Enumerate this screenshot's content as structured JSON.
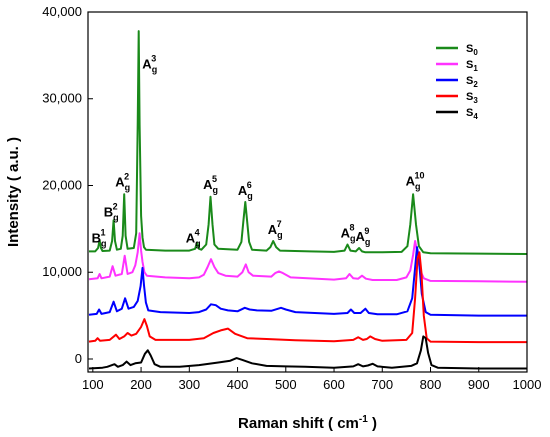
{
  "chart_data": {
    "type": "line",
    "xlabel": "Raman shift ( cm",
    "xlabel_sup": "-1",
    "xlabel_end": " )",
    "ylabel": "Intensity ( a.u. )",
    "xlim": [
      90,
      1000
    ],
    "ylim": [
      -1500,
      40000
    ],
    "x_ticks": [
      100,
      200,
      300,
      400,
      500,
      600,
      700,
      800,
      900,
      1000
    ],
    "y_ticks": [
      0,
      10000,
      20000,
      30000,
      40000
    ],
    "y_tick_labels": [
      "0",
      "10,000",
      "20,000",
      "30,000",
      "40,000"
    ],
    "legend_position": "top-right",
    "series": [
      {
        "name": "S",
        "sub": "0",
        "color": "#1a8a1a",
        "points": [
          [
            92,
            12400
          ],
          [
            105,
            12400
          ],
          [
            111,
            12800
          ],
          [
            114,
            13700
          ],
          [
            117,
            12800
          ],
          [
            120,
            12450
          ],
          [
            135,
            12500
          ],
          [
            140,
            13600
          ],
          [
            143,
            16000
          ],
          [
            146,
            13600
          ],
          [
            150,
            12600
          ],
          [
            158,
            12700
          ],
          [
            162,
            14200
          ],
          [
            165,
            19000
          ],
          [
            168,
            14200
          ],
          [
            172,
            12700
          ],
          [
            185,
            12800
          ],
          [
            190,
            14500
          ],
          [
            193,
            27000
          ],
          [
            195,
            37800
          ],
          [
            197,
            27000
          ],
          [
            200,
            16500
          ],
          [
            203,
            14000
          ],
          [
            206,
            12900
          ],
          [
            210,
            12600
          ],
          [
            250,
            12500
          ],
          [
            300,
            12500
          ],
          [
            312,
            12700
          ],
          [
            316,
            13400
          ],
          [
            320,
            12700
          ],
          [
            325,
            12600
          ],
          [
            335,
            13200
          ],
          [
            340,
            15500
          ],
          [
            344,
            18700
          ],
          [
            348,
            15500
          ],
          [
            352,
            13200
          ],
          [
            360,
            12700
          ],
          [
            400,
            12600
          ],
          [
            408,
            13500
          ],
          [
            412,
            15800
          ],
          [
            416,
            18100
          ],
          [
            420,
            15800
          ],
          [
            424,
            13500
          ],
          [
            430,
            12600
          ],
          [
            460,
            12500
          ],
          [
            468,
            12900
          ],
          [
            474,
            13600
          ],
          [
            480,
            12900
          ],
          [
            488,
            12500
          ],
          [
            550,
            12400
          ],
          [
            600,
            12350
          ],
          [
            622,
            12500
          ],
          [
            628,
            13200
          ],
          [
            634,
            12500
          ],
          [
            645,
            12400
          ],
          [
            652,
            12800
          ],
          [
            658,
            12400
          ],
          [
            665,
            12300
          ],
          [
            700,
            12300
          ],
          [
            740,
            12350
          ],
          [
            752,
            13000
          ],
          [
            758,
            15500
          ],
          [
            764,
            19000
          ],
          [
            770,
            15500
          ],
          [
            776,
            13000
          ],
          [
            785,
            12300
          ],
          [
            800,
            12200
          ],
          [
            900,
            12150
          ],
          [
            1000,
            12100
          ]
        ]
      },
      {
        "name": "S",
        "sub": "1",
        "color": "#ff33ff",
        "points": [
          [
            92,
            9200
          ],
          [
            110,
            9300
          ],
          [
            114,
            9800
          ],
          [
            118,
            9300
          ],
          [
            135,
            9500
          ],
          [
            141,
            10700
          ],
          [
            147,
            9600
          ],
          [
            160,
            9800
          ],
          [
            166,
            11900
          ],
          [
            172,
            9800
          ],
          [
            182,
            10000
          ],
          [
            188,
            10800
          ],
          [
            193,
            12300
          ],
          [
            197,
            14500
          ],
          [
            200,
            12500
          ],
          [
            203,
            11200
          ],
          [
            207,
            10000
          ],
          [
            212,
            9600
          ],
          [
            250,
            9400
          ],
          [
            300,
            9300
          ],
          [
            320,
            9400
          ],
          [
            330,
            9700
          ],
          [
            338,
            10600
          ],
          [
            345,
            11500
          ],
          [
            352,
            10600
          ],
          [
            360,
            9900
          ],
          [
            375,
            9600
          ],
          [
            400,
            9500
          ],
          [
            410,
            10000
          ],
          [
            417,
            10900
          ],
          [
            423,
            10000
          ],
          [
            432,
            9600
          ],
          [
            470,
            9500
          ],
          [
            478,
            9900
          ],
          [
            486,
            10100
          ],
          [
            494,
            9900
          ],
          [
            510,
            9400
          ],
          [
            600,
            9150
          ],
          [
            625,
            9300
          ],
          [
            632,
            9800
          ],
          [
            640,
            9300
          ],
          [
            650,
            9250
          ],
          [
            658,
            9600
          ],
          [
            666,
            9250
          ],
          [
            680,
            9100
          ],
          [
            730,
            9100
          ],
          [
            750,
            9400
          ],
          [
            758,
            10200
          ],
          [
            764,
            12000
          ],
          [
            768,
            13600
          ],
          [
            772,
            12500
          ],
          [
            778,
            10300
          ],
          [
            786,
            9300
          ],
          [
            800,
            9000
          ],
          [
            900,
            8950
          ],
          [
            1000,
            8900
          ]
        ]
      },
      {
        "name": "S",
        "sub": "2",
        "color": "#0000ff",
        "points": [
          [
            92,
            5100
          ],
          [
            108,
            5200
          ],
          [
            113,
            5700
          ],
          [
            118,
            5200
          ],
          [
            135,
            5400
          ],
          [
            143,
            6600
          ],
          [
            150,
            5500
          ],
          [
            160,
            5800
          ],
          [
            167,
            7000
          ],
          [
            174,
            5800
          ],
          [
            185,
            6000
          ],
          [
            193,
            6700
          ],
          [
            199,
            8400
          ],
          [
            203,
            10500
          ],
          [
            206,
            8500
          ],
          [
            210,
            6500
          ],
          [
            215,
            5600
          ],
          [
            240,
            5400
          ],
          [
            300,
            5300
          ],
          [
            320,
            5400
          ],
          [
            335,
            5700
          ],
          [
            345,
            6300
          ],
          [
            355,
            6200
          ],
          [
            365,
            5800
          ],
          [
            380,
            5600
          ],
          [
            400,
            5500
          ],
          [
            415,
            5900
          ],
          [
            425,
            5700
          ],
          [
            440,
            5600
          ],
          [
            470,
            5550
          ],
          [
            490,
            5900
          ],
          [
            500,
            5700
          ],
          [
            520,
            5400
          ],
          [
            600,
            5200
          ],
          [
            628,
            5300
          ],
          [
            635,
            5700
          ],
          [
            642,
            5300
          ],
          [
            655,
            5300
          ],
          [
            665,
            5800
          ],
          [
            672,
            5300
          ],
          [
            690,
            5150
          ],
          [
            730,
            5150
          ],
          [
            752,
            5500
          ],
          [
            762,
            7000
          ],
          [
            768,
            10500
          ],
          [
            772,
            12900
          ],
          [
            776,
            11500
          ],
          [
            782,
            7500
          ],
          [
            790,
            5400
          ],
          [
            800,
            5100
          ],
          [
            900,
            5000
          ],
          [
            1000,
            5000
          ]
        ]
      },
      {
        "name": "S",
        "sub": "3",
        "color": "#ff0000",
        "points": [
          [
            92,
            2000
          ],
          [
            105,
            2100
          ],
          [
            110,
            2400
          ],
          [
            115,
            2100
          ],
          [
            135,
            2200
          ],
          [
            148,
            2800
          ],
          [
            155,
            2300
          ],
          [
            165,
            2600
          ],
          [
            172,
            3000
          ],
          [
            180,
            2700
          ],
          [
            190,
            2900
          ],
          [
            200,
            3700
          ],
          [
            207,
            4600
          ],
          [
            212,
            3800
          ],
          [
            218,
            2600
          ],
          [
            230,
            2200
          ],
          [
            300,
            2200
          ],
          [
            330,
            2400
          ],
          [
            350,
            3000
          ],
          [
            365,
            3300
          ],
          [
            380,
            3500
          ],
          [
            395,
            2900
          ],
          [
            420,
            2400
          ],
          [
            460,
            2300
          ],
          [
            520,
            2150
          ],
          [
            600,
            2050
          ],
          [
            640,
            2200
          ],
          [
            650,
            2500
          ],
          [
            660,
            2200
          ],
          [
            668,
            2300
          ],
          [
            675,
            2600
          ],
          [
            685,
            2300
          ],
          [
            700,
            2100
          ],
          [
            750,
            2200
          ],
          [
            762,
            3000
          ],
          [
            768,
            7000
          ],
          [
            773,
            11500
          ],
          [
            777,
            12300
          ],
          [
            781,
            10000
          ],
          [
            786,
            5000
          ],
          [
            792,
            2400
          ],
          [
            800,
            2000
          ],
          [
            900,
            1950
          ],
          [
            1000,
            1950
          ]
        ]
      },
      {
        "name": "S",
        "sub": "4",
        "color": "#000000",
        "points": [
          [
            92,
            -1100
          ],
          [
            120,
            -1000
          ],
          [
            130,
            -900
          ],
          [
            145,
            -600
          ],
          [
            152,
            -900
          ],
          [
            162,
            -700
          ],
          [
            170,
            -300
          ],
          [
            178,
            -700
          ],
          [
            188,
            -500
          ],
          [
            200,
            -400
          ],
          [
            208,
            600
          ],
          [
            214,
            1000
          ],
          [
            220,
            400
          ],
          [
            228,
            -600
          ],
          [
            240,
            -900
          ],
          [
            280,
            -900
          ],
          [
            320,
            -700
          ],
          [
            360,
            -400
          ],
          [
            385,
            -200
          ],
          [
            398,
            100
          ],
          [
            410,
            -100
          ],
          [
            430,
            -500
          ],
          [
            460,
            -800
          ],
          [
            500,
            -850
          ],
          [
            540,
            -900
          ],
          [
            600,
            -1000
          ],
          [
            640,
            -850
          ],
          [
            650,
            -600
          ],
          [
            660,
            -850
          ],
          [
            670,
            -750
          ],
          [
            680,
            -550
          ],
          [
            690,
            -850
          ],
          [
            720,
            -1000
          ],
          [
            760,
            -800
          ],
          [
            772,
            -500
          ],
          [
            780,
            1000
          ],
          [
            785,
            2600
          ],
          [
            790,
            2400
          ],
          [
            795,
            700
          ],
          [
            802,
            -700
          ],
          [
            815,
            -1000
          ],
          [
            900,
            -1100
          ],
          [
            1000,
            -1100
          ]
        ]
      }
    ],
    "annotations": [
      {
        "main": "B",
        "sub": "g",
        "sup": "1",
        "x": 113,
        "y": 13400
      },
      {
        "main": "B",
        "sub": "g",
        "sup": "2",
        "x": 138,
        "y": 16400
      },
      {
        "main": "A",
        "sub": "g",
        "sup": "2",
        "x": 162,
        "y": 19900
      },
      {
        "main": "A",
        "sub": "g",
        "sup": "3",
        "x": 218,
        "y": 33500
      },
      {
        "main": "A",
        "sub": "g",
        "sup": "4",
        "x": 308,
        "y": 13400
      },
      {
        "main": "A",
        "sub": "g",
        "sup": "5",
        "x": 344,
        "y": 19600
      },
      {
        "main": "A",
        "sub": "g",
        "sup": "6",
        "x": 416,
        "y": 18900
      },
      {
        "main": "A",
        "sub": "g",
        "sup": "7",
        "x": 478,
        "y": 14400
      },
      {
        "main": "A",
        "sub": "g",
        "sup": "8",
        "x": 629,
        "y": 14000
      },
      {
        "main": "A",
        "sub": "g",
        "sup": "9",
        "x": 660,
        "y": 13600
      },
      {
        "main": "A",
        "sub": "g",
        "sup": "10",
        "x": 768,
        "y": 20000
      }
    ]
  }
}
